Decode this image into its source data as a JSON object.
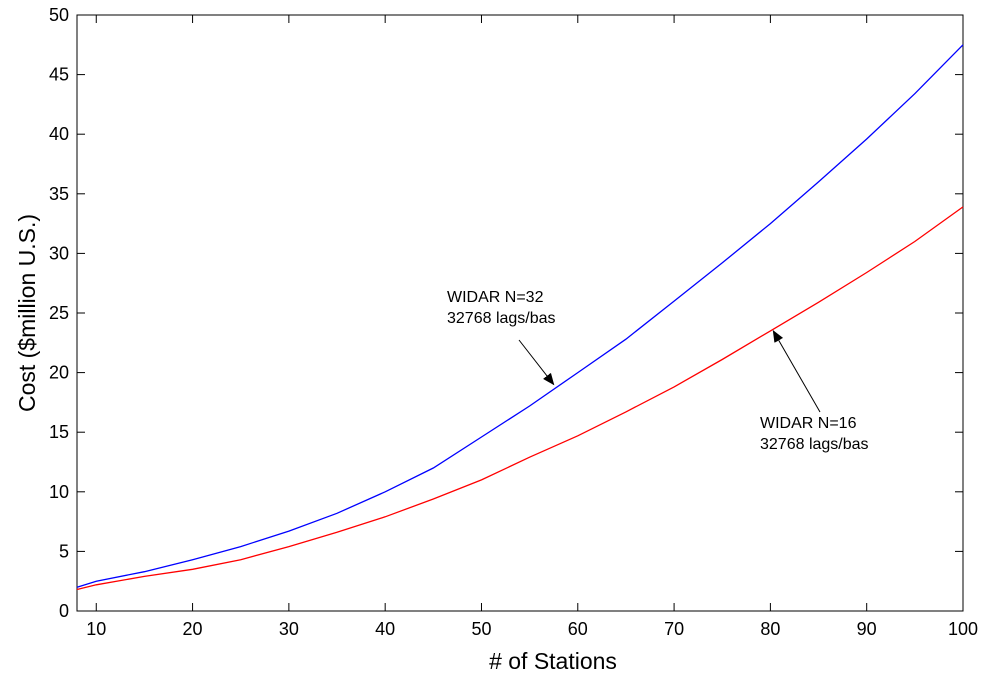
{
  "chart_data": {
    "type": "line",
    "title": "",
    "xlabel": "# of Stations",
    "ylabel": "Cost ($million U.S.)",
    "xlim": [
      8,
      100
    ],
    "ylim": [
      0,
      50
    ],
    "xticks": [
      10,
      20,
      30,
      40,
      50,
      60,
      70,
      80,
      90,
      100
    ],
    "yticks": [
      0,
      5,
      10,
      15,
      20,
      25,
      30,
      35,
      40,
      45,
      50
    ],
    "grid": false,
    "legend": null,
    "series": [
      {
        "color": "#0000ff",
        "x": [
          8,
          10,
          15,
          20,
          25,
          30,
          35,
          40,
          45,
          50,
          55,
          60,
          65,
          70,
          75,
          80,
          85,
          90,
          95,
          100
        ],
        "y": [
          2.0,
          2.5,
          3.3,
          4.3,
          5.4,
          6.7,
          8.2,
          10.0,
          12.0,
          14.6,
          17.2,
          20.0,
          22.8,
          26.0,
          29.2,
          32.5,
          36.0,
          39.6,
          43.4,
          47.5
        ]
      },
      {
        "color": "#ff0000",
        "x": [
          8,
          10,
          15,
          20,
          25,
          30,
          35,
          40,
          45,
          50,
          55,
          60,
          65,
          70,
          75,
          80,
          85,
          90,
          95,
          100
        ],
        "y": [
          1.8,
          2.2,
          2.9,
          3.5,
          4.3,
          5.4,
          6.6,
          7.9,
          9.4,
          11.0,
          12.9,
          14.7,
          16.7,
          18.8,
          21.1,
          23.5,
          25.9,
          28.4,
          31.0,
          33.9
        ]
      }
    ],
    "annotations": [
      {
        "lines": [
          "WIDAR N=32",
          "32768 lags/bas"
        ],
        "arrow_target": [
          57.5,
          19.0
        ]
      },
      {
        "lines": [
          "WIDAR N=16",
          "32768 lags/bas"
        ],
        "arrow_target": [
          80.3,
          23.5
        ]
      }
    ]
  }
}
